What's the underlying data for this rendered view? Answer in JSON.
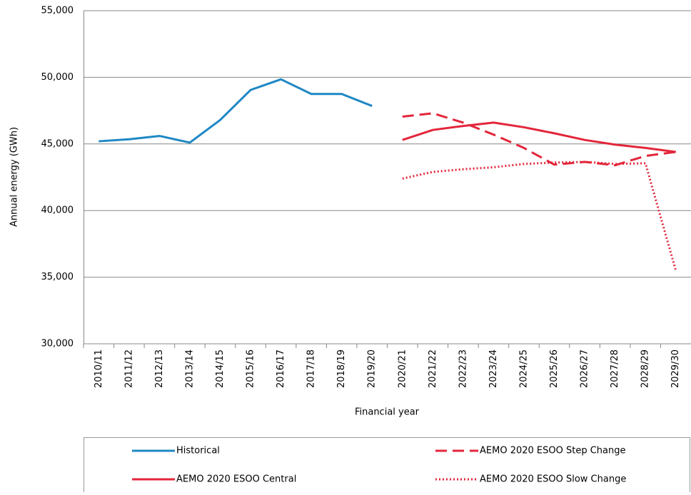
{
  "chart_data": {
    "type": "line",
    "xlabel": "Financial year",
    "ylabel": "Annual energy (GWh)",
    "categories": [
      "2010/11",
      "2011/12",
      "2012/13",
      "2013/14",
      "2014/15",
      "2015/16",
      "2016/17",
      "2017/18",
      "2018/19",
      "2019/20",
      "2020/21",
      "2021/22",
      "2022/23",
      "2023/24",
      "2024/25",
      "2025/26",
      "2026/27",
      "2027/28",
      "2028/29",
      "2029/30"
    ],
    "series": [
      {
        "name": "Historical",
        "color": "#1f88c4",
        "style": "solid",
        "values": [
          45200,
          45350,
          45600,
          45100,
          46800,
          49050,
          49850,
          48750,
          48750,
          47850,
          null,
          null,
          null,
          null,
          null,
          null,
          null,
          null,
          null,
          null
        ]
      },
      {
        "name": "AEMO 2020 ESOO Step Change",
        "color": "#e3263b",
        "style": "dashed",
        "values": [
          null,
          null,
          null,
          null,
          null,
          null,
          null,
          null,
          null,
          null,
          47050,
          47300,
          46600,
          45700,
          44700,
          43450,
          43650,
          43400,
          44100,
          44400
        ]
      },
      {
        "name": "AEMO 2020 ESOO Central",
        "color": "#e3263b",
        "style": "solid",
        "values": [
          null,
          null,
          null,
          null,
          null,
          null,
          null,
          null,
          null,
          null,
          45300,
          46050,
          46350,
          46600,
          46250,
          45800,
          45300,
          44950,
          44700,
          44400
        ]
      },
      {
        "name": "AEMO 2020 ESOO Slow Change",
        "color": "#e3263b",
        "style": "dotted",
        "values": [
          null,
          null,
          null,
          null,
          null,
          null,
          null,
          null,
          null,
          null,
          42400,
          42900,
          43100,
          43250,
          43500,
          43600,
          43650,
          43500,
          43550,
          35500
        ]
      }
    ],
    "ylim": [
      30000,
      55000
    ],
    "yticks": [
      {
        "value": 30000,
        "label": "30,000"
      },
      {
        "value": 35000,
        "label": "35,000"
      },
      {
        "value": 40000,
        "label": "40,000"
      },
      {
        "value": 45000,
        "label": "45,000"
      },
      {
        "value": 50000,
        "label": "50,000"
      },
      {
        "value": 55000,
        "label": "55,000"
      }
    ],
    "grid": true
  }
}
